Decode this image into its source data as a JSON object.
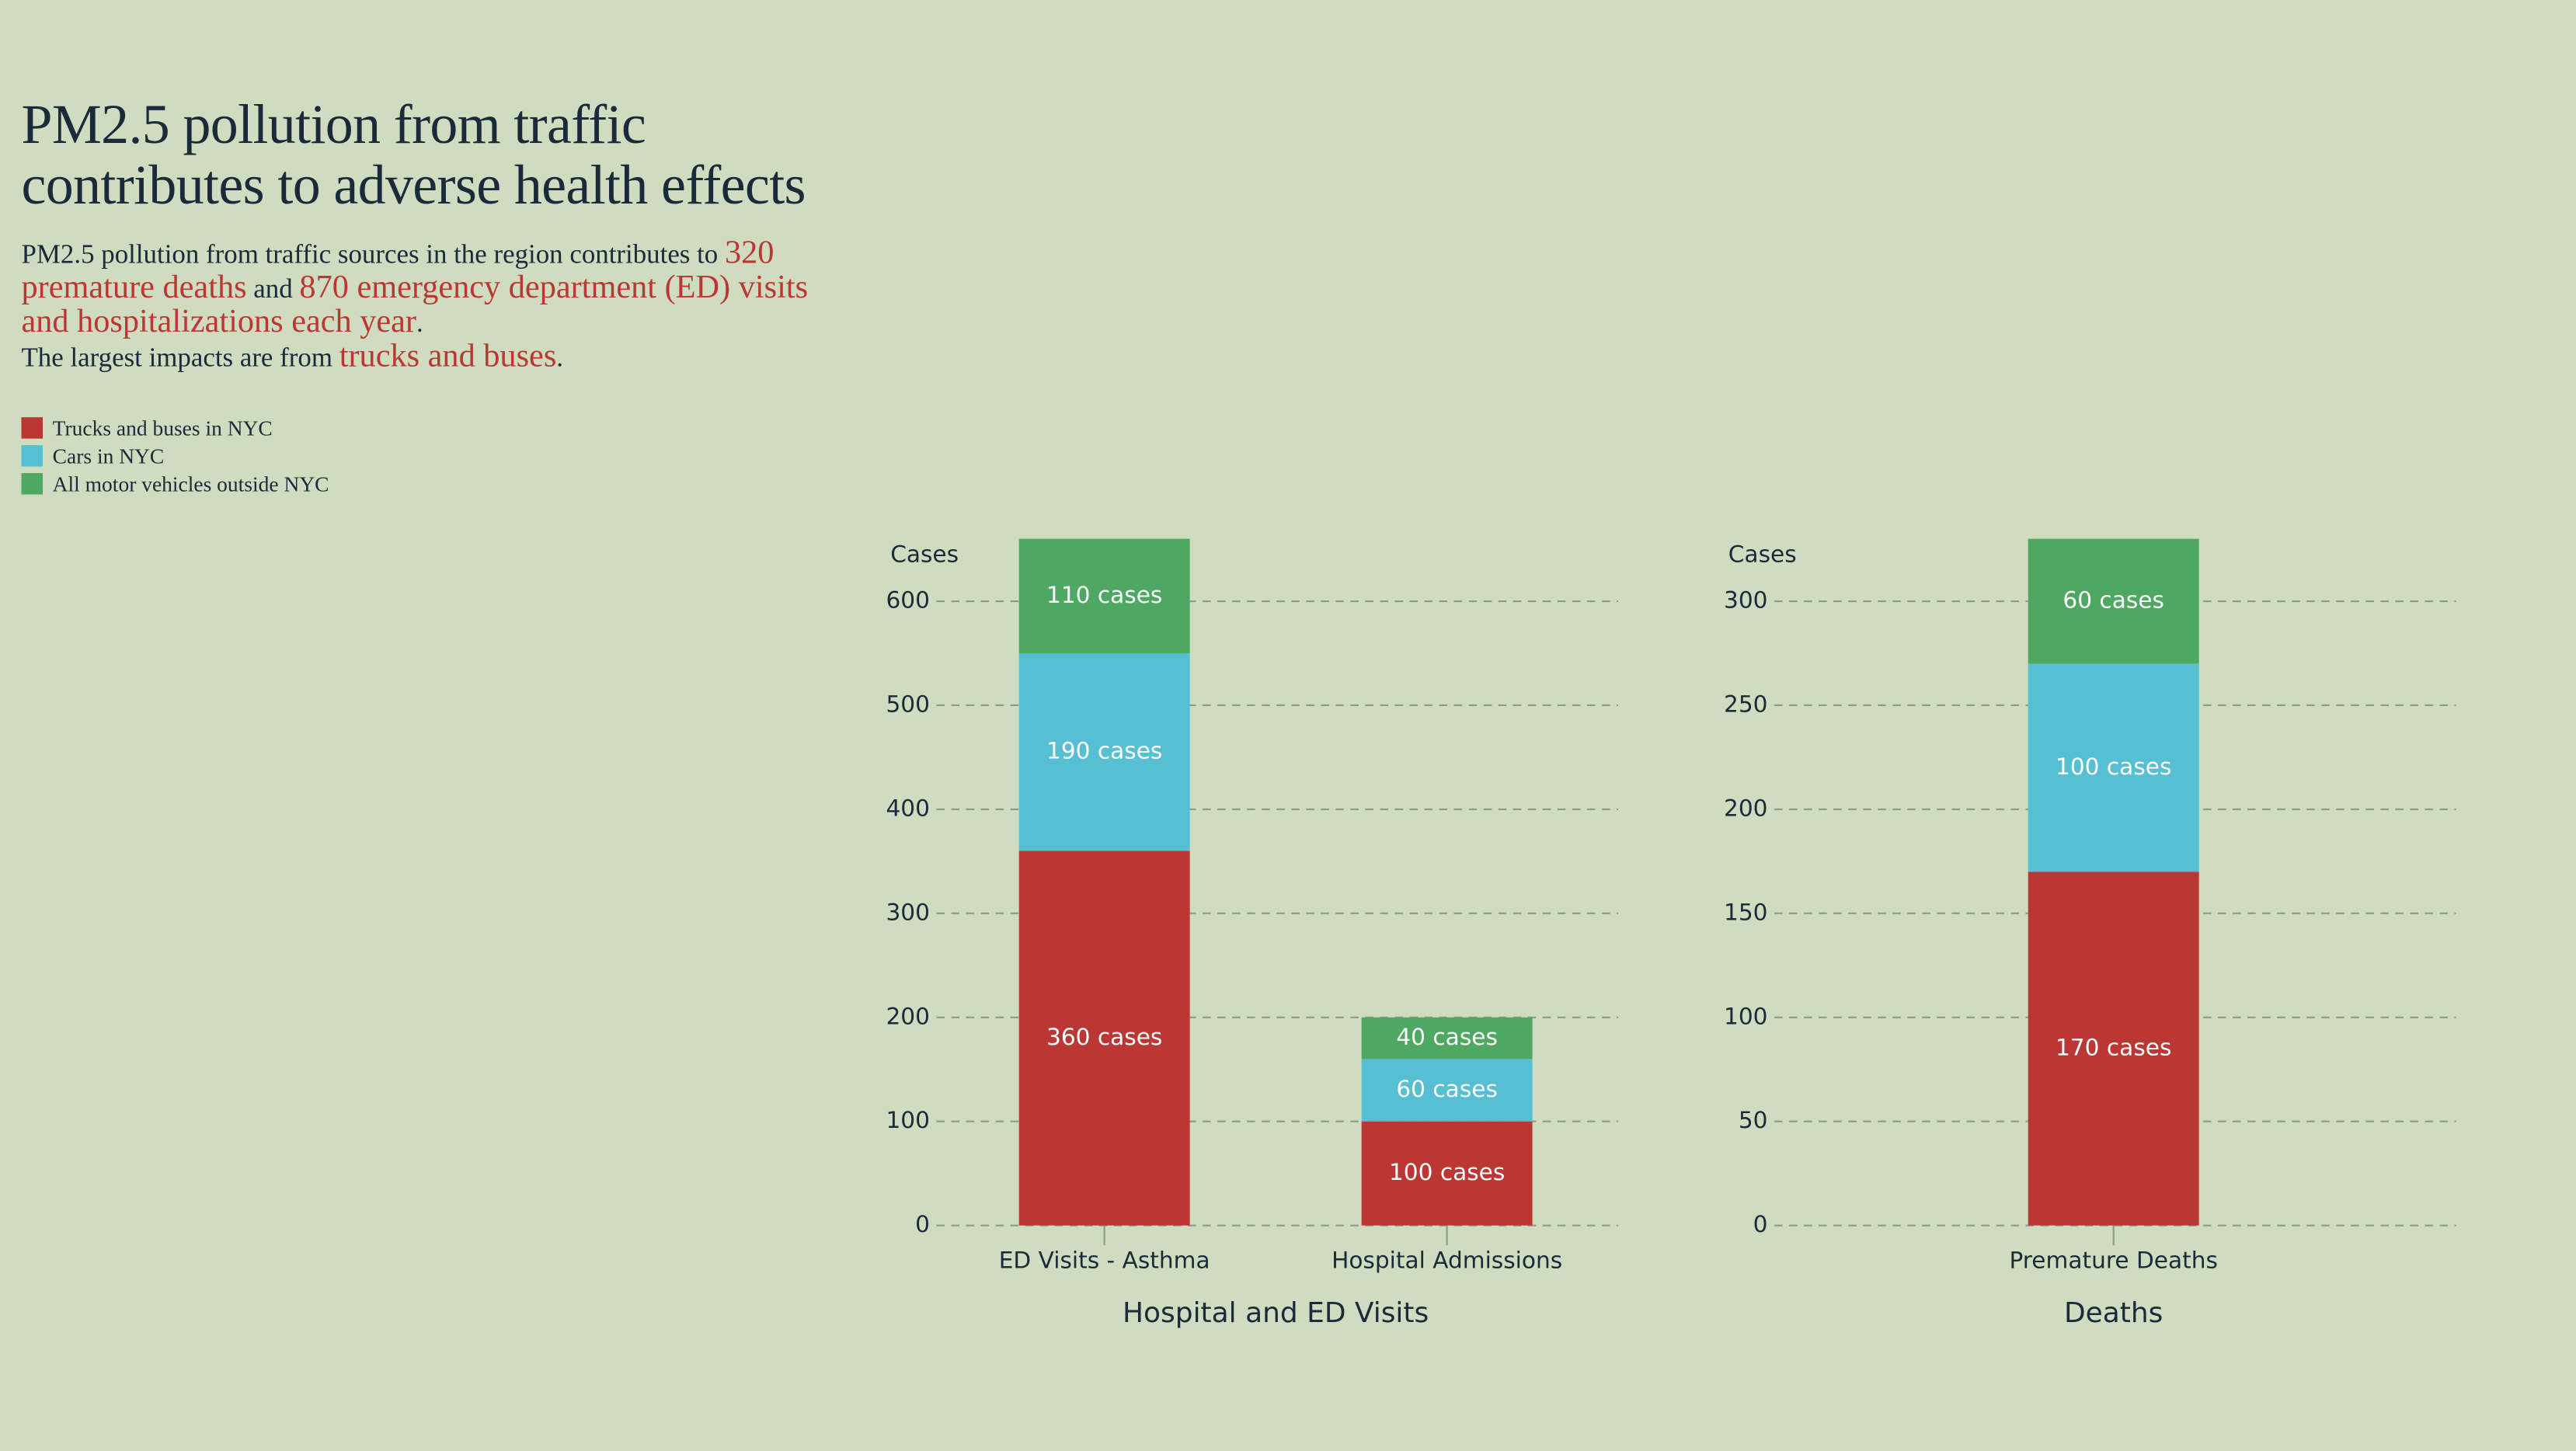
{
  "header": {
    "title": "PM2.5 pollution from traffic contributes to adverse health effects",
    "subtitle": [
      [
        {
          "text": "PM2.5 pollution from traffic sources in the region contributes to "
        },
        {
          "text": "320 premature deaths",
          "color": "#bb3734"
        },
        {
          "text": " and "
        },
        {
          "text": "870 emergency department (ED) visits and hospitalizations each year",
          "color": "#bb3734"
        },
        {
          "text": "."
        }
      ],
      [
        {
          "text": "The largest impacts are from "
        },
        {
          "text": "trucks and buses",
          "color": "#bb3734"
        },
        {
          "text": "."
        }
      ]
    ]
  },
  "chart_data": [
    {
      "type": "stacked_bar",
      "x_label": "Hospital and ED Visits",
      "y_label": "Cases",
      "categories": [
        "ED Visits - Asthma",
        "Hospital Admissions"
      ],
      "series": [
        {
          "name": "Trucks and buses in NYC",
          "color": "#bb3734",
          "values": [
            360,
            100
          ],
          "value_labels": [
            "360 cases",
            "100 cases"
          ]
        },
        {
          "name": "Cars in NYC",
          "color": "#56bfd3",
          "values": [
            190,
            60
          ],
          "value_labels": [
            "190 cases",
            "60 cases"
          ]
        },
        {
          "name": "All motor vehicles outside NYC",
          "color": "#4ea862",
          "values": [
            110,
            40
          ],
          "value_labels": [
            "110 cases",
            "40 cases"
          ]
        }
      ],
      "ylim": [
        0,
        660
      ],
      "yticks": [
        0,
        100,
        200,
        300,
        400,
        500,
        600
      ],
      "grid": true
    },
    {
      "type": "stacked_bar",
      "x_label": "Deaths",
      "y_label": "Cases",
      "categories": [
        "Premature Deaths"
      ],
      "series": [
        {
          "name": "Trucks and buses in NYC",
          "color": "#bb3734",
          "values": [
            170
          ],
          "value_labels": [
            "170 cases"
          ]
        },
        {
          "name": "Cars in NYC",
          "color": "#56bfd3",
          "values": [
            100
          ],
          "value_labels": [
            "100 cases"
          ]
        },
        {
          "name": "All motor vehicles outside NYC",
          "color": "#4ea862",
          "values": [
            60
          ],
          "value_labels": [
            "60 cases"
          ]
        }
      ],
      "ylim": [
        0,
        330
      ],
      "yticks": [
        0,
        50,
        100,
        150,
        200,
        250,
        300
      ],
      "grid": true
    }
  ]
}
